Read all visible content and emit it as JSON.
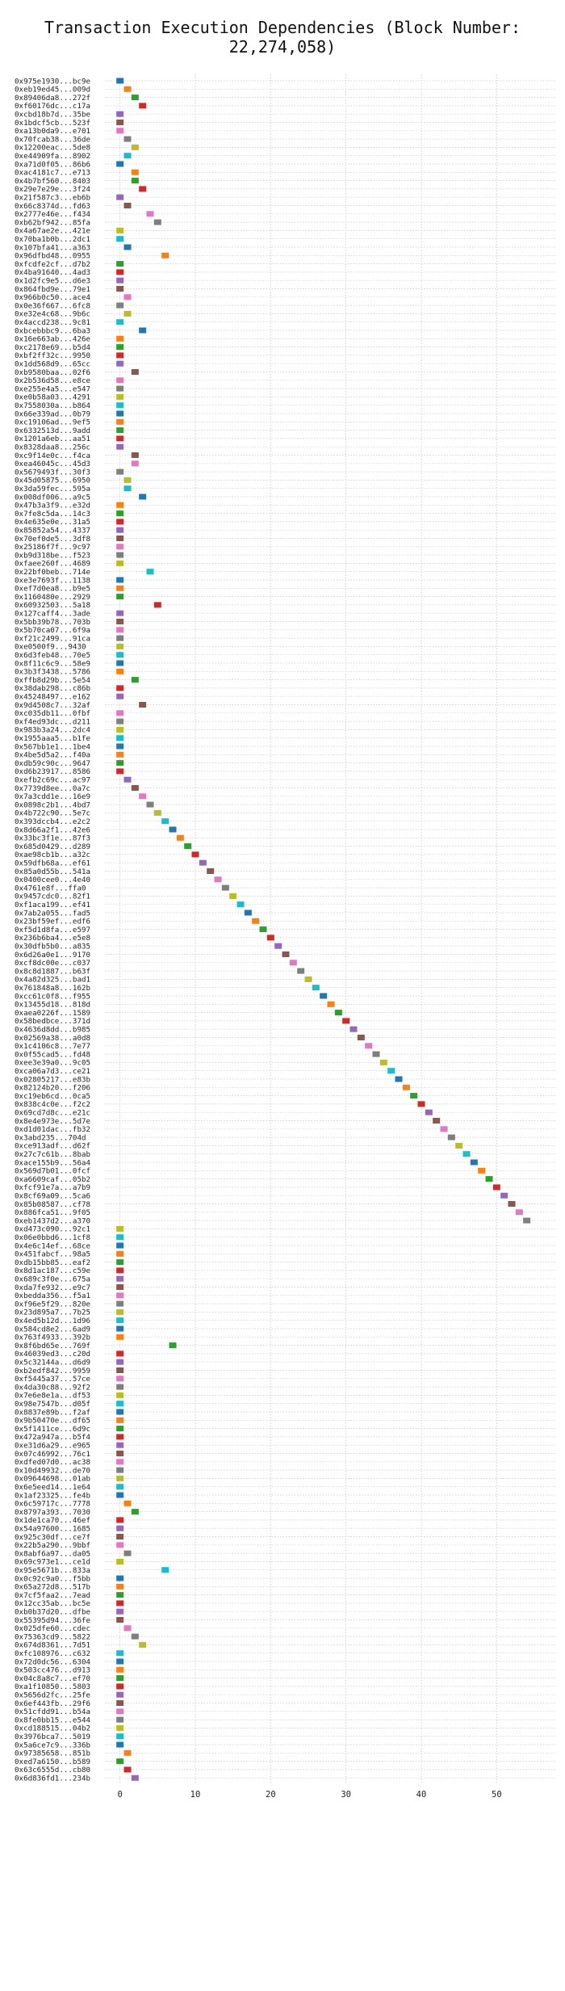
{
  "chart_data": {
    "type": "scatter",
    "title": "Transaction Execution Dependencies (Block Number: 22,274,058)",
    "xlabel": "",
    "ylabel": "",
    "xlim": [
      -2,
      58
    ],
    "xticks": [
      0,
      10,
      20,
      30,
      40,
      50
    ],
    "grid": true,
    "colors": [
      "#1f77b4",
      "#ff7f0e",
      "#2ca02c",
      "#d62728",
      "#9467bd",
      "#8c564b",
      "#e377c2",
      "#7f7f7f",
      "#bcbd22",
      "#17becf"
    ],
    "categories": [
      "0x975e1930...bc9e",
      "0xeb19ed45...009d",
      "0x89406da8...272f",
      "0xf60176dc...c17a",
      "0xcbd18b7d...35be",
      "0x1bdcf5cb...523f",
      "0xa13b0da9...e701",
      "0x70fcab38...36de",
      "0x12200eac...5de8",
      "0xe44909fa...8902",
      "0xa71d0f05...86b6",
      "0xac4181c7...e713",
      "0x4b7bf560...8403",
      "0x29e7e29e...3f24",
      "0x21f587c3...eb6b",
      "0x66c8374d...fd63",
      "0x2777e46e...f434",
      "0xb62bf942...85fa",
      "0x4a67ae2e...421e",
      "0x70ba1b0b...2dc1",
      "0x107bfa41...a363",
      "0x96dfbd48...0955",
      "0xfcdfe2cf...d7b2",
      "0x4ba91640...4ad3",
      "0x1d2fc9e5...d6e3",
      "0x864fbd9e...79e1",
      "0x966b0c50...ace4",
      "0x0e36f667...6fc8",
      "0xe32e4c68...9b6c",
      "0x4accd238...9c81",
      "0xbcebbbc9...6ba3",
      "0x16e663ab...426e",
      "0xc2178e69...b5d4",
      "0xbf2ff32c...9950",
      "0x1dd568d9...65cc",
      "0xb9580baa...02f6",
      "0x2b536d58...e8ce",
      "0xe255e4a5...e547",
      "0xe0b58a03...4291",
      "0x7558030a...b864",
      "0x66e339ad...0b79",
      "0xc19106ad...9ef5",
      "0x6332513d...9add",
      "0x1201a6eb...aa51",
      "0x8328daa8...256c",
      "0xc9f14e0c...f4ca",
      "0xea46045c...45d3",
      "0x5679493f...30f3",
      "0x45d05875...6950",
      "0x3da59fec...595a",
      "0x008df006...a9c5",
      "0x47b3a3f9...e32d",
      "0x7fe8c5da...14c3",
      "0x4e635e0e...31a5",
      "0x85852a54...4337",
      "0x70ef0de5...3df8",
      "0x25186f7f...9c97",
      "0xb9d318be...f523",
      "0xfaee260f...4689",
      "0x22bf0beb...714e",
      "0xe3e7693f...1138",
      "0xef7d0ea8...b9e5",
      "0x1160480e...2929",
      "0x60932503...5a18",
      "0x127caff4...3ade",
      "0x5bb39b78...703b",
      "0x5b70ca07...6f9a",
      "0xf21c2499...91ca",
      "0xe0500f9...9430",
      "0x6d3feb48...70e5",
      "0x8f11c6c9...58e9",
      "0x3b3f3438...5786",
      "0xffb8d29b...5e54",
      "0x38dab298...c86b",
      "0x45248497...e162",
      "0x9d4508c7...32af",
      "0xc035db11...0fbf",
      "0xf4ed93dc...d211",
      "0x983b3a24...2dc4",
      "0x1955aaa5...b1fe",
      "0x567bb1e1...1be4",
      "0x4be5d5a2...f40a",
      "0xdb59c90c...9647",
      "0xd6b23917...8586",
      "0xefb2c69c...ac97",
      "0x7739d8ee...0a7c",
      "0x7a3cdd1e...16e9",
      "0x0898c2b1...4bd7",
      "0x4b722c90...5e7c",
      "0x393dcc b4...e2c2",
      "0x8d66a2f1...42e6",
      "0x33bc3f1e...87f3",
      "0x685d0429...d289",
      "0xae98cb1b...a32c",
      "0x59dfb68a...ef61",
      "0x85a0d55b...541a",
      "0x0400cee0...4e40",
      "0x4761e8f...ffa0",
      "0x9457cdc0...82f1",
      "0xf1aca199...ef41",
      "0x7ab2a055...fad5",
      "0x23bf59ef...edf6",
      "0xf5d1d8fa...e597",
      "0x236b6ba4...e5e8",
      "0x30dfb5b0...a835",
      "0x6d26a0e1...9170",
      "0xcf8dc00e...c037",
      "0x8c8d1887...b63f",
      "0x4a82d325...bad1",
      "0x761848a8...162b",
      "0xcc61c0f8...f955",
      "0x13455d18...818d",
      "0xaea0226f...1589",
      "0x58bedbce...371d",
      "0x4636d8dd...b985",
      "0x02569a38...a0d8",
      "0x1c4106c8...7e77",
      "0x0f55cad5...fd48",
      "0xee3e39a0...9c05",
      "0xca06a7d3...ce21",
      "0x02805217...e83b",
      "0x82124b20...f206",
      "0xc19eb6cd...0ca5",
      "0x838c4c0e...f2c2",
      "0x69cd7d8c...e21c",
      "0x8e4e973e...5d7e",
      "0xd1d01dac...fb32",
      "0x3abd235...704d",
      "0xce913adf...d62f",
      "0x27c7c61b...8bab",
      "0xace155b9...56a4",
      "0x569d7b01...0fcf",
      "0xa6609caf...05b2",
      "0xfcf91e7a...a7b9",
      "0x8cf69a09...5ca6",
      "0x85b08587...cf78",
      "0x886fca51...9f05",
      "0xeb1437d2...a370",
      "0xd473c090...92c1",
      "0x06e0bbd6...1cf8",
      "0x4e6c14ef...68ce",
      "0x451fabcf...98a5",
      "0xdb15bb85...eaf2",
      "0x8d1ac187...c59e",
      "0x689c3f0e...675a",
      "0xda7fe932...e9c7",
      "0xbedda356...f5a1",
      "0xf96e5f29...820e",
      "0x23d895a7...7b25",
      "0x4ed5b12d...1d96",
      "0x584cd8e2...6ad9",
      "0x763f4933...392b",
      "0x8f6bd65e...769f",
      "0x46039ed3...c20d",
      "0x5c32144a...d6d9",
      "0xb2edf842...9959",
      "0xf5445a37...57ce",
      "0x4da30c88...92f2",
      "0x7e6e8e1a...df53",
      "0x98e7547b...d05f",
      "0x8837e89b...f2af",
      "0x9b50470e...df65",
      "0x5f1411ce...6d9c",
      "0x472a947a...b5f4",
      "0xe31d6a29...e965",
      "0x07c46992...76c1",
      "0xdfed07d0...ac38",
      "0x10d49932...de70",
      "0x09644698...01ab",
      "0x6e5eed14...1e64",
      "0x1af23325...fe4b",
      "0x6c59717c...7778",
      "0x8797a393...7030",
      "0x1de1ca70...46ef",
      "0x54a97600...1685",
      "0x925c30df...ce7f",
      "0x22b5a290...9bbf",
      "0x8abf6a97...da05",
      "0x69c973e1...ce1d",
      "0x95e5671b...833a",
      "0x0c92c9a0...f5bb",
      "0x65a272d8...517b",
      "0x7cf5faa2...7ead",
      "0x12cc35ab...bc5e",
      "0xb0b37d20...dfbe",
      "0x55395d94...36fe",
      "0x025dfe60...cdec",
      "0x75363cd9...5822",
      "0x674d8361...7d51",
      "0xfc108976...c632",
      "0x72d0dc56...6304",
      "0x503cc476...d913",
      "0x04c8a8c7...ef70",
      "0xa1f10850...5803",
      "0x5656d2fc...25fe",
      "0x6ef443fb...29f6",
      "0x51cfdd91...b54a",
      "0x8fe0bb15...e544",
      "0xcd188515...04b2",
      "0x3976bca7...5019",
      "0x5a6ce7c9...336b",
      "0x97385658...851b",
      "0xed7a6150...b589",
      "0x63c6555d...cb80",
      "0x6d836fd1...234b"
    ],
    "values": [
      0,
      1,
      2,
      3,
      0,
      0,
      0,
      1,
      2,
      1,
      0,
      2,
      2,
      3,
      0,
      1,
      4,
      5,
      0,
      0,
      1,
      6,
      0,
      0,
      0,
      0,
      1,
      0,
      1,
      0,
      3,
      0,
      0,
      0,
      0,
      2,
      0,
      0,
      0,
      0,
      0,
      0,
      0,
      0,
      0,
      2,
      2,
      0,
      1,
      1,
      3,
      0,
      0,
      0,
      0,
      0,
      0,
      0,
      0,
      4,
      0,
      0,
      0,
      5,
      0,
      0,
      0,
      0,
      0,
      0,
      0,
      0,
      2,
      0,
      0,
      3,
      0,
      0,
      0,
      0,
      0,
      0,
      0,
      0,
      1,
      2,
      3,
      4,
      5,
      6,
      7,
      8,
      9,
      10,
      11,
      12,
      13,
      14,
      15,
      16,
      17,
      18,
      19,
      20,
      21,
      22,
      23,
      24,
      25,
      26,
      27,
      28,
      29,
      30,
      31,
      32,
      33,
      34,
      35,
      36,
      37,
      38,
      39,
      40,
      41,
      42,
      43,
      44,
      45,
      46,
      47,
      48,
      49,
      50,
      51,
      52,
      53,
      54,
      0,
      0,
      0,
      0,
      0,
      0,
      0,
      0,
      0,
      0,
      0,
      0,
      0,
      0,
      7,
      0,
      0,
      0,
      0,
      0,
      0,
      0,
      0,
      0,
      0,
      0,
      0,
      0,
      0,
      0,
      0,
      0,
      0,
      1,
      2,
      0,
      0,
      0,
      0,
      1,
      0,
      6,
      0,
      0,
      0,
      0,
      0,
      0,
      1,
      2,
      3,
      0,
      0,
      0,
      0,
      0,
      0,
      0,
      0,
      0,
      0,
      0,
      0,
      1,
      0,
      1,
      2
    ]
  }
}
